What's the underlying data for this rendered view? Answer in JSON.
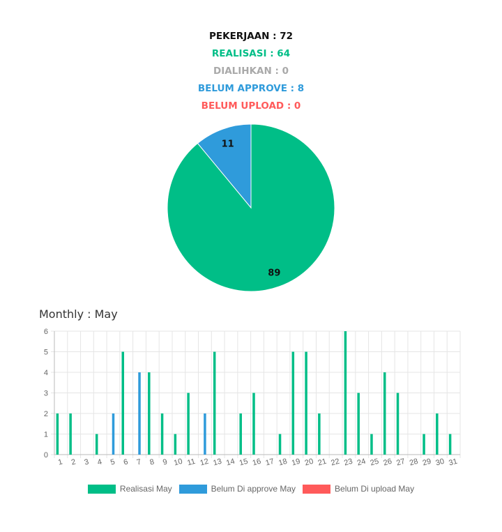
{
  "summary": {
    "lines": [
      {
        "text": "PEKERJAAN : 72",
        "color": "#111111"
      },
      {
        "text": "REALISASI : 64",
        "color": "#00BE87"
      },
      {
        "text": "DIALIHKAN : 0",
        "color": "#A9A9A9"
      },
      {
        "text": "BELUM APPROVE : 8",
        "color": "#2F9BDB"
      },
      {
        "text": "BELUM UPLOAD : 0",
        "color": "#FF5A5A"
      }
    ]
  },
  "monthly": {
    "title": "Monthly : May"
  },
  "chart_data": [
    {
      "type": "pie",
      "slices": [
        {
          "label": "89",
          "value": 89,
          "color": "#00BE87"
        },
        {
          "label": "11",
          "value": 11,
          "color": "#2F9BDB"
        }
      ]
    },
    {
      "type": "bar",
      "categories": [
        "1",
        "2",
        "3",
        "4",
        "5",
        "6",
        "7",
        "8",
        "9",
        "10",
        "11",
        "12",
        "13",
        "14",
        "15",
        "16",
        "17",
        "18",
        "19",
        "20",
        "21",
        "22",
        "23",
        "24",
        "25",
        "26",
        "27",
        "28",
        "29",
        "30",
        "31"
      ],
      "ylim": [
        0,
        6
      ],
      "yticks": [
        "0",
        "1",
        "2",
        "3",
        "4",
        "5",
        "6"
      ],
      "grid": true,
      "legend_position": "bottom",
      "series": [
        {
          "name": "Realisasi May",
          "color": "#00BE87",
          "values": [
            2,
            2,
            0,
            1,
            0,
            5,
            0,
            4,
            2,
            1,
            3,
            0,
            5,
            0,
            2,
            3,
            0,
            1,
            5,
            5,
            2,
            0,
            6,
            3,
            1,
            4,
            3,
            0,
            1,
            2,
            1
          ]
        },
        {
          "name": "Belum Di approve May",
          "color": "#2F9BDB",
          "values": [
            0,
            0,
            0,
            0,
            2,
            0,
            4,
            0,
            0,
            0,
            0,
            2,
            0,
            0,
            0,
            0,
            0,
            0,
            0,
            0,
            0,
            0,
            0,
            0,
            0,
            0,
            0,
            0,
            0,
            0,
            0
          ]
        },
        {
          "name": "Belum Di upload May",
          "color": "#FF5A5A",
          "values": [
            0,
            0,
            0,
            0,
            0,
            0,
            0,
            0,
            0,
            0,
            0,
            0,
            0,
            0,
            0,
            0,
            0,
            0,
            0,
            0,
            0,
            0,
            0,
            0,
            0,
            0,
            0,
            0,
            0,
            0,
            0
          ]
        }
      ]
    }
  ]
}
